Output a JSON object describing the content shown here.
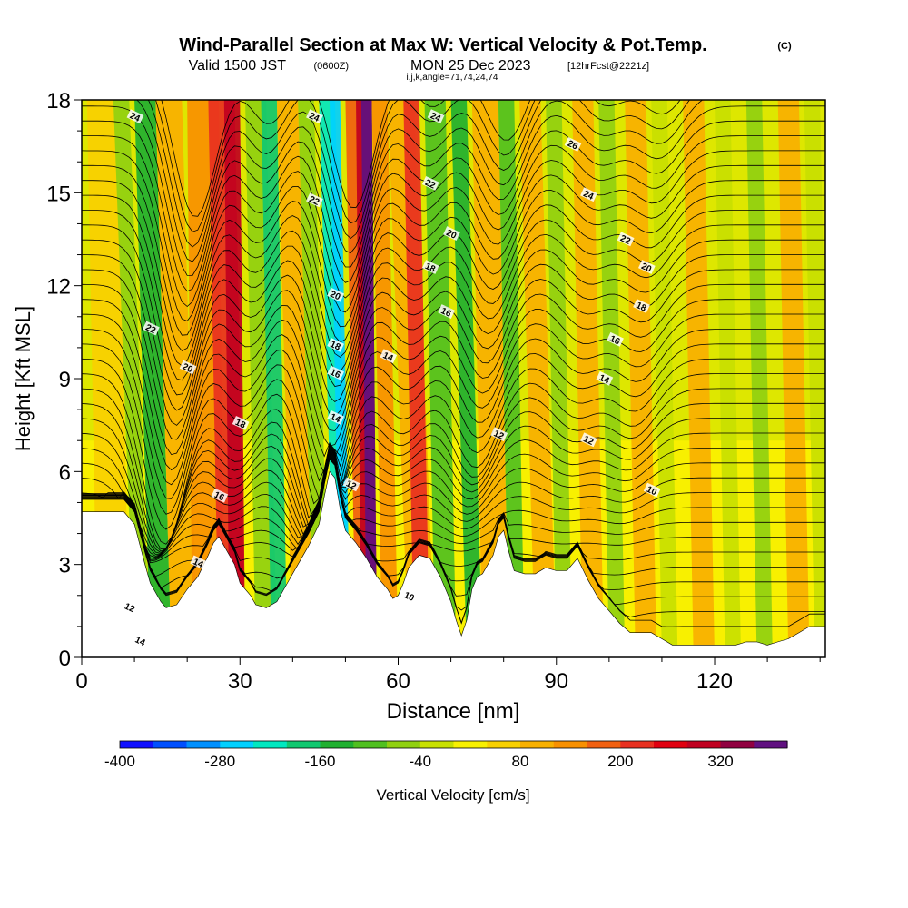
{
  "chart_data": {
    "type": "heatmap",
    "title": "Wind-Parallel Section at Max W: Vertical Velocity & Pot.Temp.",
    "title_mark": "(C)",
    "subtitle_main": "Valid 1500 JST",
    "subtitle_z": "(0600Z)",
    "subtitle_date": "MON 25 Dec 2023",
    "subtitle_fcst": "[12hrFcst@2221z]",
    "subtitle_ij": "i,j,k,angle=71,74,24,74",
    "xlabel": "Distance [nm]",
    "ylabel": "Height [Kft MSL]",
    "xlim": [
      0,
      141
    ],
    "ylim": [
      0,
      18
    ],
    "x_ticks": [
      "0",
      "30",
      "60",
      "90",
      "120"
    ],
    "y_ticks": [
      "0",
      "3",
      "6",
      "9",
      "12",
      "15",
      "18"
    ],
    "colorbar": {
      "label": "Vertical Velocity [cm/s]",
      "tick_labels": [
        "-400",
        "-280",
        "-160",
        "-40",
        "80",
        "200",
        "320"
      ],
      "colors": [
        "#1010ff",
        "#0050ff",
        "#0090ff",
        "#00d0ff",
        "#00e8c0",
        "#10c870",
        "#20b030",
        "#50c020",
        "#90d010",
        "#c8e000",
        "#f8f000",
        "#f8d000",
        "#f8b000",
        "#f89000",
        "#f06010",
        "#e83020",
        "#e00010",
        "#c00020",
        "#900040",
        "#601080"
      ]
    },
    "contour_field": "Potential Temperature",
    "contour_labels": [
      "10",
      "12",
      "14",
      "16",
      "18",
      "20",
      "22",
      "24",
      "26"
    ],
    "updraft_max_x_nm": 53,
    "downdraft_max_x_nm": 47
  }
}
